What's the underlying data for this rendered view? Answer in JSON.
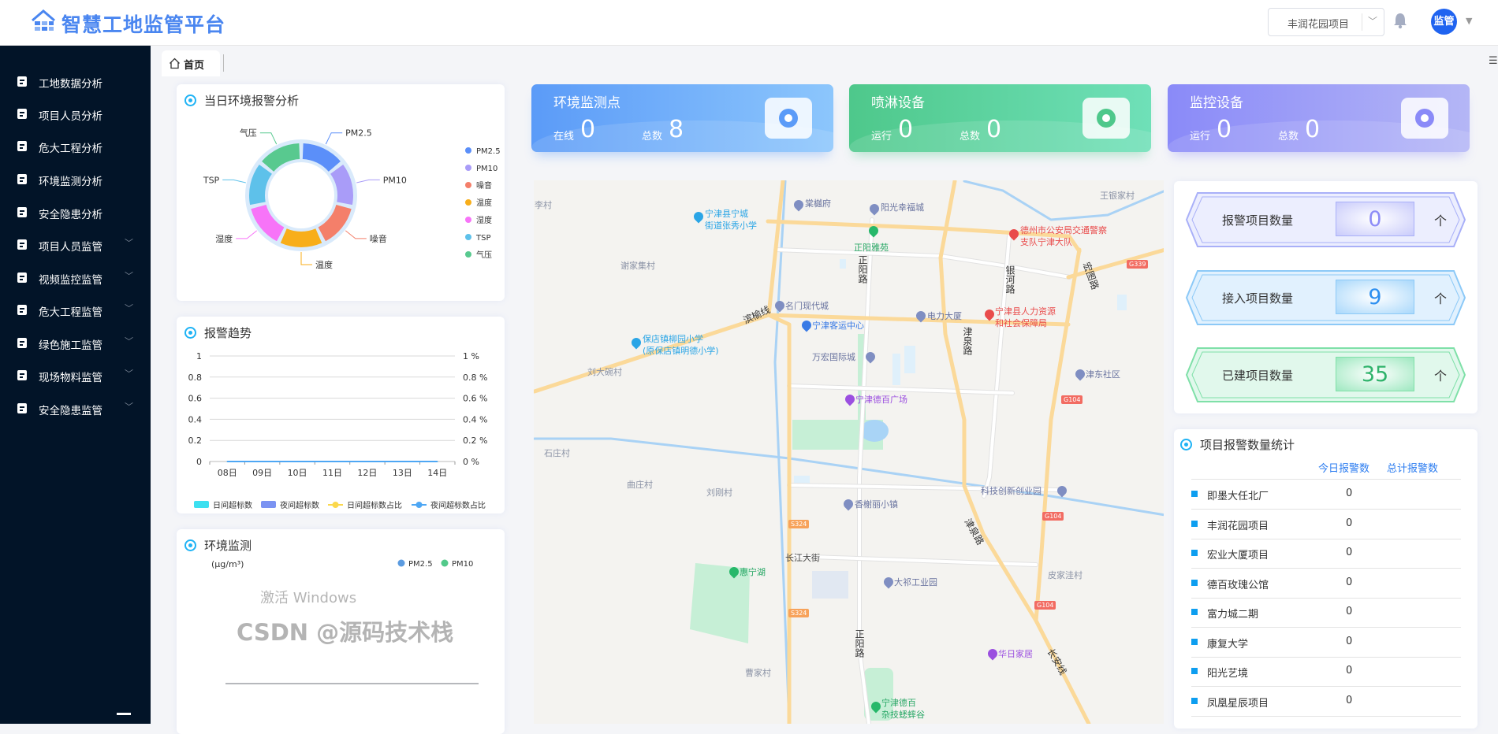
{
  "header": {
    "app_title": "智慧工地监管平台",
    "project_select": "丰润花园项目",
    "avatar_label": "监管",
    "icons": {
      "bell": "bell-icon",
      "caret": "caret-down-icon"
    }
  },
  "sidebar": {
    "items": [
      {
        "label": "工地数据分析",
        "icon": "building-icon",
        "expandable": false
      },
      {
        "label": "项目人员分析",
        "icon": "person-icon",
        "expandable": false
      },
      {
        "label": "危大工程分析",
        "icon": "funnel-icon",
        "expandable": false
      },
      {
        "label": "环境监测分析",
        "icon": "target-icon",
        "expandable": false
      },
      {
        "label": "安全隐患分析",
        "icon": "bar-chart-icon",
        "expandable": false
      },
      {
        "label": "项目人员监管",
        "icon": "users-icon",
        "expandable": true
      },
      {
        "label": "视频监控监管",
        "icon": "camera-icon",
        "expandable": true
      },
      {
        "label": "危大工程监管",
        "icon": "cabinet-icon",
        "expandable": true
      },
      {
        "label": "绿色施工监管",
        "icon": "shield-check-icon",
        "expandable": true
      },
      {
        "label": "现场物料监管",
        "icon": "cart-icon",
        "expandable": true
      },
      {
        "label": "安全隐患监管",
        "icon": "badge-icon",
        "expandable": true
      }
    ]
  },
  "tabs": [
    {
      "label": "首页",
      "icon": "home-icon",
      "active": true
    }
  ],
  "env_alarm": {
    "title": "当日环境报警分析"
  },
  "alarm_trend": {
    "title": "报警趋势"
  },
  "env_monitor": {
    "title": "环境监测"
  },
  "stats": [
    {
      "title": "环境监测点",
      "label1": "在线",
      "value1": "0",
      "label2": "总数",
      "value2": "8",
      "icon": "monitor-point-icon",
      "color_from": "#5b9bf8",
      "color_to": "#8cc6fc"
    },
    {
      "title": "喷淋设备",
      "label1": "运行",
      "value1": "0",
      "label2": "总数",
      "value2": "0",
      "icon": "sprinkler-icon",
      "color_from": "#4ec88b",
      "color_to": "#6fe0b8"
    },
    {
      "title": "监控设备",
      "label1": "运行",
      "value1": "0",
      "label2": "总数",
      "value2": "0",
      "icon": "webcam-icon",
      "color_from": "#8a8af8",
      "color_to": "#b4b6f6"
    }
  ],
  "project_counts": [
    {
      "label": "报警项目数量",
      "value": "0",
      "unit": "个",
      "color": "#8d8cf7"
    },
    {
      "label": "接入项目数量",
      "value": "9",
      "unit": "个",
      "color": "#2d8ff0"
    },
    {
      "label": "已建项目数量",
      "value": "35",
      "unit": "个",
      "color": "#2fb36b"
    }
  ],
  "alarm_stats": {
    "title": "项目报警数量统计",
    "columns": [
      "今日报警数",
      "总计报警数"
    ],
    "rows": [
      {
        "name": "即墨大任北厂",
        "today": "0"
      },
      {
        "name": "丰润花园项目",
        "today": "0"
      },
      {
        "name": "宏业大厦项目",
        "today": "0"
      },
      {
        "name": "德百玫瑰公馆",
        "today": "0"
      },
      {
        "name": "富力城二期",
        "today": "0"
      },
      {
        "name": "康复大学",
        "today": "0"
      },
      {
        "name": "阳光艺境",
        "today": "0"
      },
      {
        "name": "凤凰星辰项目",
        "today": "0"
      }
    ]
  },
  "map": {
    "labels": [
      {
        "t": "李村",
        "c": "#8b93a6"
      },
      {
        "t": "宁津县宁城",
        "c": "#2aa5e6"
      },
      {
        "t": "街道张秀小学",
        "c": "#2aa5e6"
      },
      {
        "t": "棠樾府",
        "c": "#6a74a0"
      },
      {
        "t": "阳光幸福城",
        "c": "#6a74a0"
      },
      {
        "t": "王银家村",
        "c": "#8b93a6"
      },
      {
        "t": "正阳雅苑",
        "c": "#27a765"
      },
      {
        "t": "德州市公安局交通警察",
        "c": "#e94b4b"
      },
      {
        "t": "支队宁津大队",
        "c": "#e94b4b"
      },
      {
        "t": "谢家集村",
        "c": "#8b93a6"
      },
      {
        "t": "名门现代城",
        "c": "#6a74a0"
      },
      {
        "t": "电力大厦",
        "c": "#6a74a0"
      },
      {
        "t": "宁津县人力资源",
        "c": "#e94b4b"
      },
      {
        "t": "和社会保障局",
        "c": "#e94b4b"
      },
      {
        "t": "宁津客运中心",
        "c": "#3a7be6"
      },
      {
        "t": "保店镇柳园小学",
        "c": "#2aa5e6"
      },
      {
        "t": "(原保店镇明德小学)",
        "c": "#2aa5e6"
      },
      {
        "t": "万宏国际城",
        "c": "#6a74a0"
      },
      {
        "t": "刘大碗村",
        "c": "#8b93a6"
      },
      {
        "t": "津东社区",
        "c": "#6a74a0"
      },
      {
        "t": "宁津德百广场",
        "c": "#9b4fe0"
      },
      {
        "t": "石庄村",
        "c": "#8b93a6"
      },
      {
        "t": "曲庄村",
        "c": "#8b93a6"
      },
      {
        "t": "刘刚村",
        "c": "#8b93a6"
      },
      {
        "t": "科技创新创业园",
        "c": "#6a74a0"
      },
      {
        "t": "香榭丽小镇",
        "c": "#6a74a0"
      },
      {
        "t": "长江大街",
        "c": "#444"
      },
      {
        "t": "皮家洼村",
        "c": "#8b93a6"
      },
      {
        "t": "惠宁湖",
        "c": "#27a765"
      },
      {
        "t": "大祁工业园",
        "c": "#6a74a0"
      },
      {
        "t": "华日家居",
        "c": "#9b4fe0"
      },
      {
        "t": "曹家村",
        "c": "#8b93a6"
      },
      {
        "t": "宁津德百",
        "c": "#27a765"
      },
      {
        "t": "杂技蟋蟀谷",
        "c": "#27a765"
      }
    ],
    "road_names": [
      "正阳路",
      "银河路",
      "宏图路",
      "滨榆线",
      "津泉路",
      "津泉路",
      "正阳路",
      "长安线"
    ],
    "badges": [
      "G339",
      "G104",
      "G104",
      "S324",
      "G104",
      "S324"
    ]
  },
  "watermark": {
    "line1": "激活 Windows",
    "line2": "CSDN @源码技术栈"
  },
  "chart_data": [
    {
      "type": "pie",
      "title": "",
      "donut": true,
      "categories": [
        "PM2.5",
        "PM10",
        "噪音",
        "温度",
        "湿度",
        "TSP",
        "气压"
      ],
      "values": [
        1,
        1,
        1,
        1,
        1,
        1,
        1
      ],
      "colors": [
        "#5b8ff9",
        "#a99cf8",
        "#f47f6a",
        "#f8ae1a",
        "#f774f8",
        "#5ec1ea",
        "#58c98f"
      ],
      "legend": "right"
    },
    {
      "type": "bar",
      "title": "",
      "categories": [
        "08日",
        "09日",
        "10日",
        "11日",
        "12日",
        "13日",
        "14日"
      ],
      "series": [
        {
          "name": "日间超标数",
          "kind": "bar",
          "values": [
            0,
            0,
            0,
            0,
            0,
            0,
            0
          ],
          "color": "#3de0f0"
        },
        {
          "name": "夜间超标数",
          "kind": "bar",
          "values": [
            0,
            0,
            0,
            0,
            0,
            0,
            0
          ],
          "color": "#7b93f2"
        },
        {
          "name": "日间超标数占比",
          "kind": "line",
          "values": [
            0,
            0,
            0,
            0,
            0,
            0,
            0
          ],
          "color": "#fbd84c"
        },
        {
          "name": "夜间超标数占比",
          "kind": "line",
          "values": [
            0,
            0,
            0,
            0,
            0,
            0,
            0
          ],
          "color": "#4ea7f4"
        }
      ],
      "ylim": [
        0,
        1
      ],
      "yticks": [
        "0",
        "0.2",
        "0.4",
        "0.6",
        "0.8",
        "1"
      ],
      "y2lim": [
        0,
        1
      ],
      "y2ticks": [
        "0 %",
        "0.2 %",
        "0.4 %",
        "0.6 %",
        "0.8 %",
        "1 %"
      ],
      "grid": true,
      "legend": "bottom"
    },
    {
      "type": "line",
      "title": "",
      "ylabel": "(μg/m³)",
      "categories": [],
      "series": [
        {
          "name": "PM2.5",
          "values": [],
          "color": "#5b9be0"
        },
        {
          "name": "PM10",
          "values": [],
          "color": "#52c98a"
        }
      ],
      "legend": "top-right"
    }
  ]
}
